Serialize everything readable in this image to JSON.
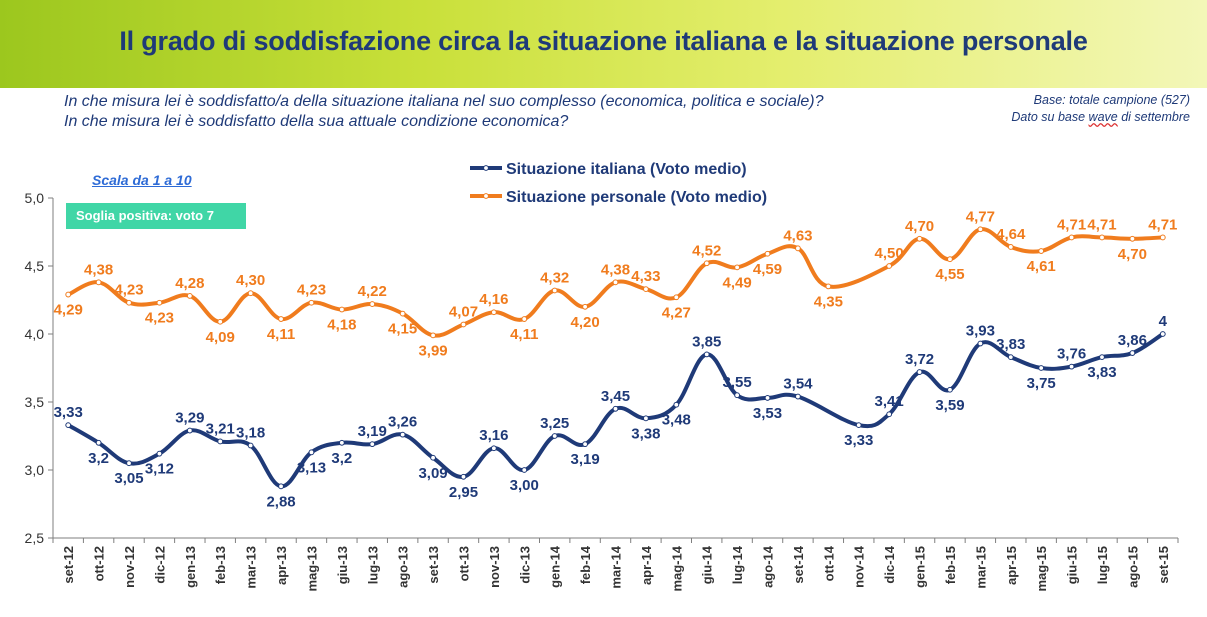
{
  "header": {
    "title": "Il grado di soddisfazione circa la situazione italiana e la situazione personale"
  },
  "questions": {
    "line1": "In che misura lei è soddisfatto/a della situazione italiana nel suo complesso (economica, politica e sociale)?",
    "line2": "In che misura lei è soddisfatto della sua attuale condizione economica?"
  },
  "base": {
    "line1": "Base: totale campione (527)",
    "line2_pre": "Dato su base ",
    "line2_wave": "wave",
    "line2_post": " di settembre"
  },
  "scale_note": "Scala da 1 a 10",
  "threshold_note": "Soglia positiva: voto 7",
  "colors": {
    "title": "#1f3a78",
    "italiana": "#1f3a78",
    "personale": "#f07c1e",
    "axis": "#7f7f7f"
  },
  "chart_data": {
    "type": "line",
    "categories": [
      "set-12",
      "ott-12",
      "nov-12",
      "dic-12",
      "gen-13",
      "feb-13",
      "mar-13",
      "apr-13",
      "mag-13",
      "giu-13",
      "lug-13",
      "ago-13",
      "set-13",
      "ott-13",
      "nov-13",
      "dic-13",
      "gen-14",
      "feb-14",
      "mar-14",
      "apr-14",
      "mag-14",
      "giu-14",
      "lug-14",
      "ago-14",
      "set-14",
      "ott-14",
      "nov-14",
      "dic-14",
      "gen-15",
      "feb-15",
      "mar-15",
      "apr-15",
      "mag-15",
      "giu-15",
      "lug-15",
      "ago-15",
      "set-15"
    ],
    "series": [
      {
        "name": "Situazione italiana (Voto medio)",
        "values": [
          3.33,
          3.2,
          3.05,
          3.12,
          3.29,
          3.21,
          3.18,
          2.88,
          3.13,
          3.2,
          3.19,
          3.26,
          3.09,
          2.95,
          3.16,
          3.0,
          3.25,
          3.19,
          3.45,
          3.38,
          3.48,
          3.85,
          3.55,
          3.53,
          3.54,
          null,
          3.33,
          3.41,
          3.72,
          3.59,
          3.93,
          3.83,
          3.75,
          3.76,
          3.83,
          3.86,
          4
        ],
        "labels": [
          "3,33",
          "3,2",
          "3,05",
          "3,12",
          "3,29",
          "3,21",
          "3,18",
          "2,88",
          "3,13",
          "3,2",
          "3,19",
          "3,26",
          "3,09",
          "2,95",
          "3,16",
          "3,00",
          "3,25",
          "3,19",
          "3,45",
          "3,38",
          "3,48",
          "3,85",
          "3,55",
          "3,53",
          "3,54",
          "",
          "3,33",
          "3,41",
          "3,72",
          "3,59",
          "3,93",
          "3,83",
          "3,75",
          "3,76",
          "3,83",
          "3,86",
          "4"
        ]
      },
      {
        "name": "Situazione personale (Voto medio)",
        "values": [
          4.29,
          4.38,
          4.23,
          4.23,
          4.28,
          4.09,
          4.3,
          4.11,
          4.23,
          4.18,
          4.22,
          4.15,
          3.99,
          4.07,
          4.16,
          4.11,
          4.32,
          4.2,
          4.38,
          4.33,
          4.27,
          4.52,
          4.49,
          4.59,
          4.63,
          4.35,
          null,
          4.5,
          4.7,
          4.55,
          4.77,
          4.64,
          4.61,
          4.71,
          4.71,
          4.7,
          4.71
        ],
        "labels": [
          "4,29",
          "4,38",
          "4,23",
          "4,23",
          "4,28",
          "4,09",
          "4,30",
          "4,11",
          "4,23",
          "4,18",
          "4,22",
          "4,15",
          "3,99",
          "4,07",
          "4,16",
          "4,11",
          "4,32",
          "4,20",
          "4,38",
          "4,33",
          "4,27",
          "4,52",
          "4,49",
          "4,59",
          "4,63",
          "4,35",
          "",
          "4,50",
          "4,70",
          "4,55",
          "4,77",
          "4,64",
          "4,61",
          "4,71",
          "4,71",
          "4,70",
          "4,71"
        ]
      }
    ],
    "ylim": [
      2.5,
      5.0
    ],
    "yticks": [
      "2,5",
      "3,0",
      "3,5",
      "4,0",
      "4,5",
      "5,0"
    ],
    "title": "",
    "xlabel": "",
    "ylabel": "",
    "legend": "top-center",
    "grid": false
  }
}
